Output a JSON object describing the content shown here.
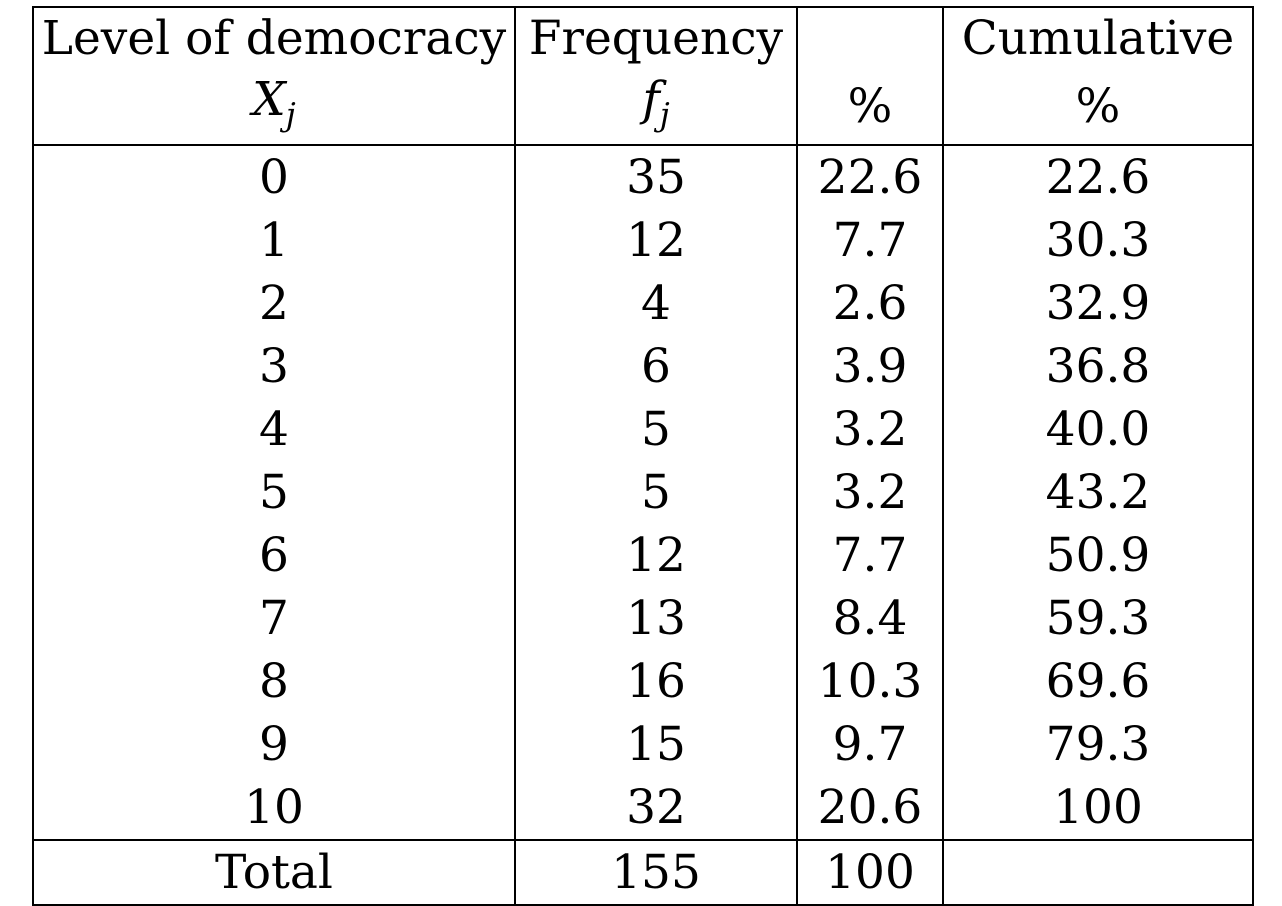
{
  "headers": {
    "col1_line1": "Level of democracy",
    "col1_var": "X",
    "col1_sub": "j",
    "col2_line1": "Frequency",
    "col2_var": "f",
    "col2_sub": "j",
    "col3_line1": "",
    "col3_line2": "%",
    "col4_line1": "Cumulative",
    "col4_line2": "%"
  },
  "rows": [
    {
      "x": "0",
      "f": "35",
      "pct": "22.6",
      "cum": "22.6"
    },
    {
      "x": "1",
      "f": "12",
      "pct": "7.7",
      "cum": "30.3"
    },
    {
      "x": "2",
      "f": "4",
      "pct": "2.6",
      "cum": "32.9"
    },
    {
      "x": "3",
      "f": "6",
      "pct": "3.9",
      "cum": "36.8"
    },
    {
      "x": "4",
      "f": "5",
      "pct": "3.2",
      "cum": "40.0"
    },
    {
      "x": "5",
      "f": "5",
      "pct": "3.2",
      "cum": "43.2"
    },
    {
      "x": "6",
      "f": "12",
      "pct": "7.7",
      "cum": "50.9"
    },
    {
      "x": "7",
      "f": "13",
      "pct": "8.4",
      "cum": "59.3"
    },
    {
      "x": "8",
      "f": "16",
      "pct": "10.3",
      "cum": "69.6"
    },
    {
      "x": "9",
      "f": "15",
      "pct": "9.7",
      "cum": "79.3"
    },
    {
      "x": "10",
      "f": "32",
      "pct": "20.6",
      "cum": "100"
    }
  ],
  "total": {
    "label": "Total",
    "f": "155",
    "pct": "100",
    "cum": ""
  }
}
